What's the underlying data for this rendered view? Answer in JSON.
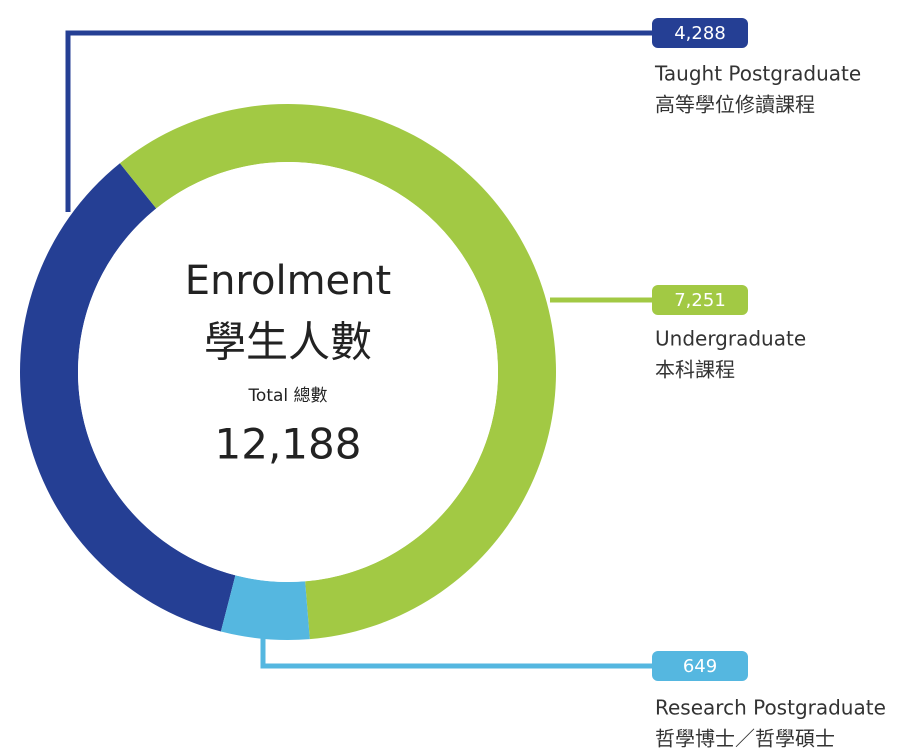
{
  "chart_data": {
    "type": "pie",
    "donut": true,
    "title": "Enrolment",
    "title_zh": "學生人數",
    "total_caption": "Total 總數",
    "total": 12188,
    "total_label": "12,188",
    "categories": [
      "Taught Postgraduate",
      "Undergraduate",
      "Research Postgraduate"
    ],
    "categories_zh": [
      "高等學位修讀課程",
      "本科課程",
      "哲學博士／哲學碩士"
    ],
    "values": [
      4288,
      7251,
      649
    ],
    "value_labels": [
      "4,288",
      "7,251",
      "649"
    ],
    "colors": [
      "#253f94",
      "#a2c944",
      "#55b7e0"
    ]
  }
}
